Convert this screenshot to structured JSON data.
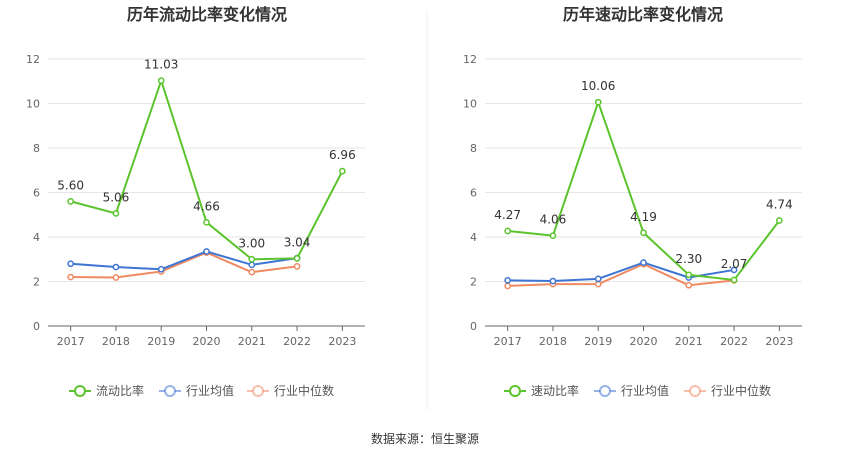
{
  "footer": {
    "source": "数据来源：恒生聚源"
  },
  "chart_data": [
    {
      "type": "line",
      "title": "历年流动比率变化情况",
      "categories": [
        "2017",
        "2018",
        "2019",
        "2020",
        "2021",
        "2022",
        "2023"
      ],
      "ylim": [
        0,
        12
      ],
      "yticks": [
        0,
        2,
        4,
        6,
        8,
        10,
        12
      ],
      "grid": true,
      "legend_position": "bottom",
      "series": [
        {
          "name": "流动比率",
          "color": "#5bc42c",
          "values": [
            5.6,
            5.06,
            11.03,
            4.66,
            3.0,
            3.04,
            6.96
          ],
          "labels": [
            "5.60",
            "5.06",
            "11.03",
            "4.66",
            "3.00",
            "3.04",
            "6.96"
          ]
        },
        {
          "name": "行业均值",
          "color": "#3e75d3",
          "values": [
            2.8,
            2.65,
            2.55,
            3.35,
            2.75,
            3.05,
            null
          ]
        },
        {
          "name": "行业中位数",
          "color": "#f08a62",
          "values": [
            2.2,
            2.18,
            2.45,
            3.3,
            2.42,
            2.68,
            null
          ]
        }
      ]
    },
    {
      "type": "line",
      "title": "历年速动比率变化情况",
      "categories": [
        "2017",
        "2018",
        "2019",
        "2020",
        "2021",
        "2022",
        "2023"
      ],
      "ylim": [
        0,
        12
      ],
      "yticks": [
        0,
        2,
        4,
        6,
        8,
        10,
        12
      ],
      "grid": true,
      "legend_position": "bottom",
      "series": [
        {
          "name": "速动比率",
          "color": "#5bc42c",
          "values": [
            4.27,
            4.06,
            10.06,
            4.19,
            2.3,
            2.07,
            4.74
          ],
          "labels": [
            "4.27",
            "4.06",
            "10.06",
            "4.19",
            "2.30",
            "2.07",
            "4.74"
          ]
        },
        {
          "name": "行业均值",
          "color": "#3e75d3",
          "values": [
            2.05,
            2.02,
            2.12,
            2.85,
            2.18,
            2.52,
            null
          ]
        },
        {
          "name": "行业中位数",
          "color": "#f08a62",
          "values": [
            1.8,
            1.88,
            1.88,
            2.78,
            1.83,
            2.05,
            null
          ]
        }
      ]
    }
  ]
}
